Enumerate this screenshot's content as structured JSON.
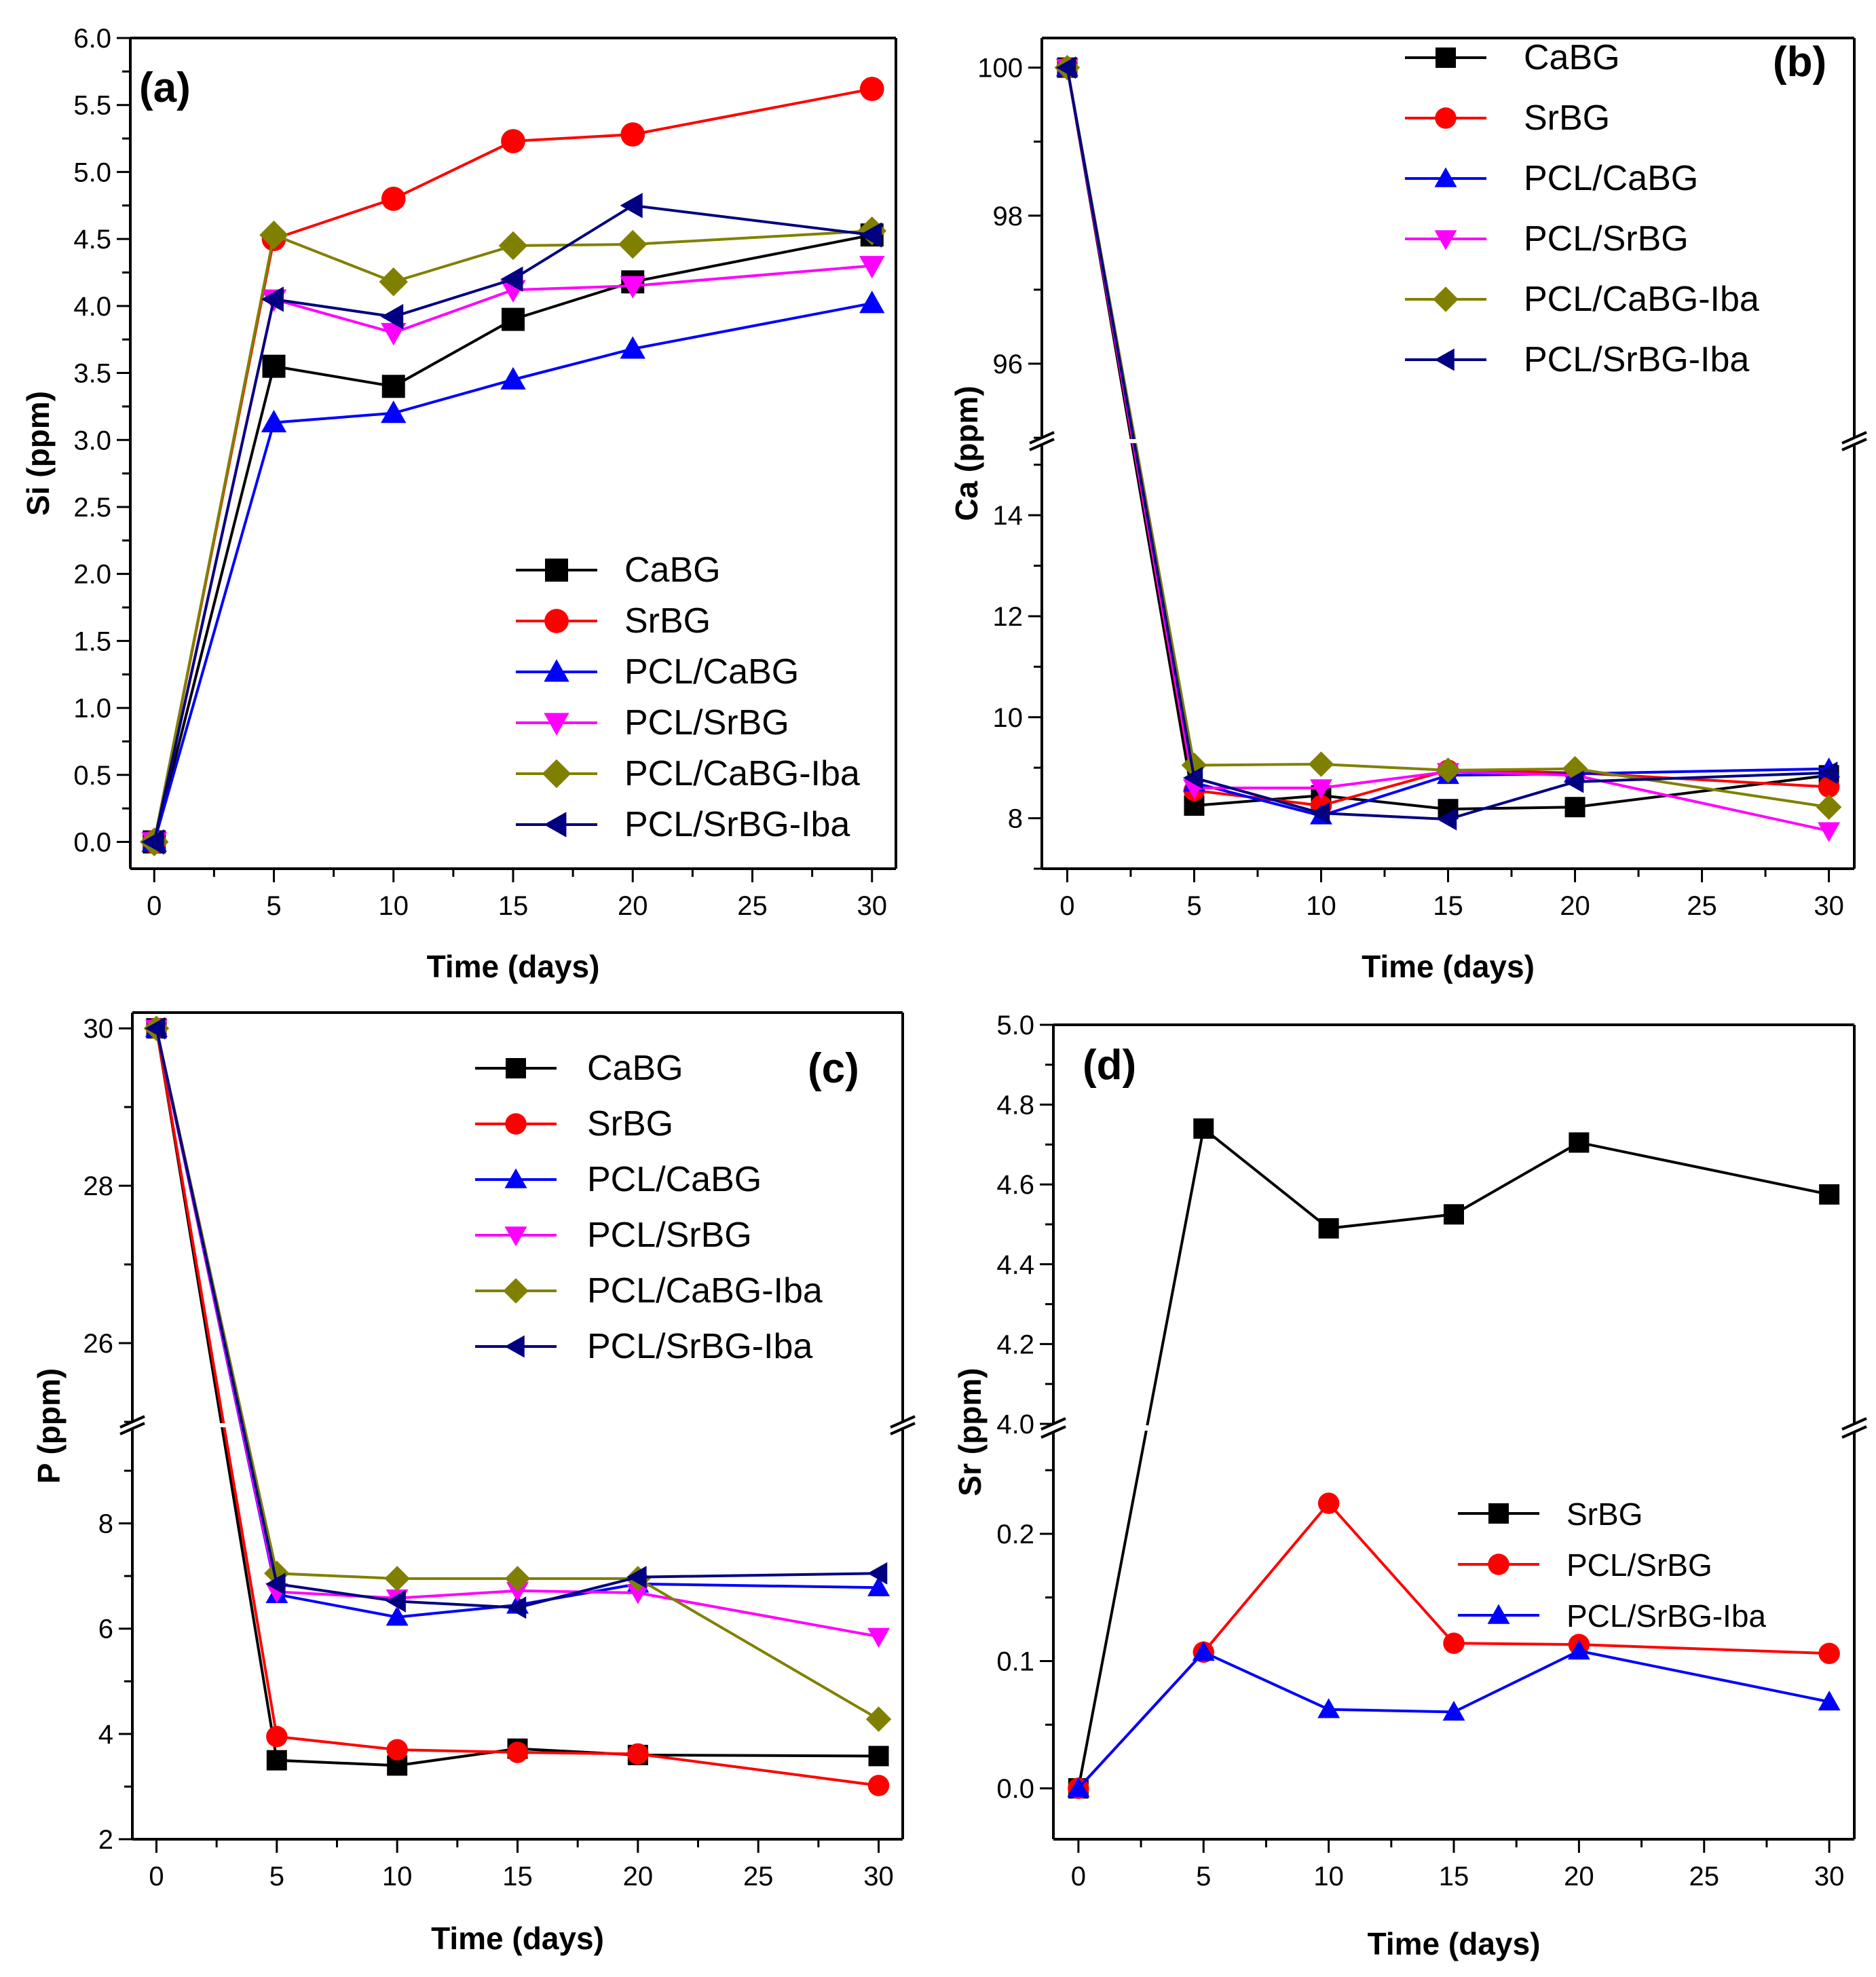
{
  "chart_data": [
    {
      "panel": "(a)",
      "type": "line",
      "xlabel": "Time (days)",
      "ylabel": "Si (ppm)",
      "xlim": [
        -1,
        31
      ],
      "ylim": [
        -0.2,
        6.0
      ],
      "xticks": [
        "0",
        "5",
        "10",
        "15",
        "20",
        "25",
        "30"
      ],
      "yticks": [
        "0.0",
        "0.5",
        "1.0",
        "1.5",
        "2.0",
        "2.5",
        "3.0",
        "3.5",
        "4.0",
        "4.5",
        "5.0",
        "5.5",
        "6.0"
      ],
      "legend_position": "lower-right",
      "x": [
        0,
        5,
        10,
        15,
        20,
        30
      ],
      "series": [
        {
          "name": "CaBG",
          "color": "#000000",
          "marker": "square",
          "values": [
            0.0,
            3.55,
            3.4,
            3.9,
            4.18,
            4.53
          ]
        },
        {
          "name": "SrBG",
          "color": "#ff0000",
          "marker": "circle",
          "values": [
            0.0,
            4.5,
            4.8,
            5.23,
            5.28,
            5.62
          ]
        },
        {
          "name": "PCL/CaBG",
          "color": "#0000ff",
          "marker": "triangle-up",
          "values": [
            0.0,
            3.13,
            3.2,
            3.45,
            3.68,
            4.02
          ]
        },
        {
          "name": "PCL/SrBG",
          "color": "#ff00ff",
          "marker": "triangle-down",
          "values": [
            0.0,
            4.05,
            3.8,
            4.12,
            4.15,
            4.3
          ]
        },
        {
          "name": "PCL/CaBG-Iba",
          "color": "#808000",
          "marker": "diamond",
          "values": [
            0.0,
            4.53,
            4.18,
            4.45,
            4.46,
            4.56
          ]
        },
        {
          "name": "PCL/SrBG-Iba",
          "color": "#000080",
          "marker": "triangle-left",
          "values": [
            0.0,
            4.05,
            3.92,
            4.2,
            4.75,
            4.53
          ]
        }
      ]
    },
    {
      "panel": "(b)",
      "type": "line",
      "xlabel": "Time (days)",
      "ylabel": "Ca (ppm)",
      "xlim": [
        -1,
        31
      ],
      "broken_axis": true,
      "ylim_lower": [
        7.0,
        15.4
      ],
      "ylim_upper": [
        95.0,
        100.4
      ],
      "yticks_lower": [
        "8",
        "10",
        "12",
        "14"
      ],
      "yticks_upper": [
        "96",
        "98",
        "100"
      ],
      "xticks": [
        "0",
        "5",
        "10",
        "15",
        "20",
        "25",
        "30"
      ],
      "legend_position": "top-right",
      "x": [
        0,
        5,
        10,
        15,
        20,
        30
      ],
      "series": [
        {
          "name": "CaBG",
          "color": "#000000",
          "marker": "square",
          "values": [
            100.0,
            8.25,
            8.45,
            8.18,
            8.22,
            8.85
          ]
        },
        {
          "name": "SrBG",
          "color": "#ff0000",
          "marker": "circle",
          "values": [
            100.0,
            8.55,
            8.25,
            8.95,
            8.9,
            8.62
          ]
        },
        {
          "name": "PCL/CaBG",
          "color": "#0000ff",
          "marker": "triangle-up",
          "values": [
            100.0,
            8.7,
            8.05,
            8.85,
            8.88,
            8.98
          ]
        },
        {
          "name": "PCL/SrBG",
          "color": "#ff00ff",
          "marker": "triangle-down",
          "values": [
            100.0,
            8.6,
            8.6,
            8.92,
            8.85,
            7.75
          ]
        },
        {
          "name": "PCL/CaBG-Iba",
          "color": "#808000",
          "marker": "diamond",
          "values": [
            100.0,
            9.05,
            9.07,
            8.95,
            8.98,
            8.22
          ]
        },
        {
          "name": "PCL/SrBG-Iba",
          "color": "#000080",
          "marker": "triangle-left",
          "values": [
            100.0,
            8.8,
            8.1,
            7.98,
            8.72,
            8.9
          ]
        }
      ]
    },
    {
      "panel": "(c)",
      "type": "line",
      "xlabel": "Time (days)",
      "ylabel": "P (ppm)",
      "xlim": [
        -1,
        31
      ],
      "broken_axis": true,
      "ylim_lower": [
        2.0,
        9.8
      ],
      "ylim_upper": [
        25.0,
        30.2
      ],
      "yticks_lower": [
        "2",
        "4",
        "6",
        "8"
      ],
      "yticks_upper": [
        "26",
        "28",
        "30"
      ],
      "xticks": [
        "0",
        "5",
        "10",
        "15",
        "20",
        "25",
        "30"
      ],
      "legend_position": "top-right",
      "x": [
        0,
        5,
        10,
        15,
        20,
        30
      ],
      "series": [
        {
          "name": "CaBG",
          "color": "#000000",
          "marker": "square",
          "values": [
            30.0,
            3.5,
            3.4,
            3.72,
            3.6,
            3.58
          ]
        },
        {
          "name": "SrBG",
          "color": "#ff0000",
          "marker": "circle",
          "values": [
            30.0,
            3.95,
            3.7,
            3.65,
            3.62,
            3.02
          ]
        },
        {
          "name": "PCL/CaBG",
          "color": "#0000ff",
          "marker": "triangle-up",
          "values": [
            30.0,
            6.65,
            6.22,
            6.45,
            6.85,
            6.78
          ]
        },
        {
          "name": "PCL/SrBG",
          "color": "#ff00ff",
          "marker": "triangle-down",
          "values": [
            30.0,
            6.7,
            6.58,
            6.72,
            6.68,
            5.85
          ]
        },
        {
          "name": "PCL/CaBG-Iba",
          "color": "#808000",
          "marker": "diamond",
          "values": [
            30.0,
            7.05,
            6.95,
            6.95,
            6.95,
            4.28
          ]
        },
        {
          "name": "PCL/SrBG-Iba",
          "color": "#000080",
          "marker": "triangle-left",
          "values": [
            30.0,
            6.85,
            6.52,
            6.4,
            6.98,
            7.05
          ]
        }
      ]
    },
    {
      "panel": "(d)",
      "type": "line",
      "xlabel": "Time (days)",
      "ylabel": "Sr (ppm)",
      "xlim": [
        -1,
        31
      ],
      "broken_axis": true,
      "ylim_lower": [
        -0.04,
        0.28
      ],
      "ylim_upper": [
        4.0,
        5.0
      ],
      "yticks_lower": [
        "0.0",
        "0.1",
        "0.2"
      ],
      "yticks_upper": [
        "4.0",
        "4.2",
        "4.4",
        "4.6",
        "4.8",
        "5.0"
      ],
      "xticks": [
        "0",
        "5",
        "10",
        "15",
        "20",
        "25",
        "30"
      ],
      "legend_position": "lower-right",
      "x": [
        0,
        5,
        10,
        15,
        20,
        30
      ],
      "series": [
        {
          "name": "SrBG",
          "color": "#000000",
          "marker": "square",
          "values": [
            0.0,
            4.74,
            4.49,
            4.525,
            4.705,
            4.575
          ]
        },
        {
          "name": "PCL/SrBG",
          "color": "#ff0000",
          "marker": "circle",
          "values": [
            0.0,
            0.107,
            0.224,
            0.114,
            0.113,
            0.106
          ]
        },
        {
          "name": "PCL/SrBG-Iba",
          "color": "#0000ff",
          "marker": "triangle-up",
          "values": [
            0.0,
            0.107,
            0.062,
            0.06,
            0.108,
            0.068
          ]
        }
      ]
    }
  ]
}
